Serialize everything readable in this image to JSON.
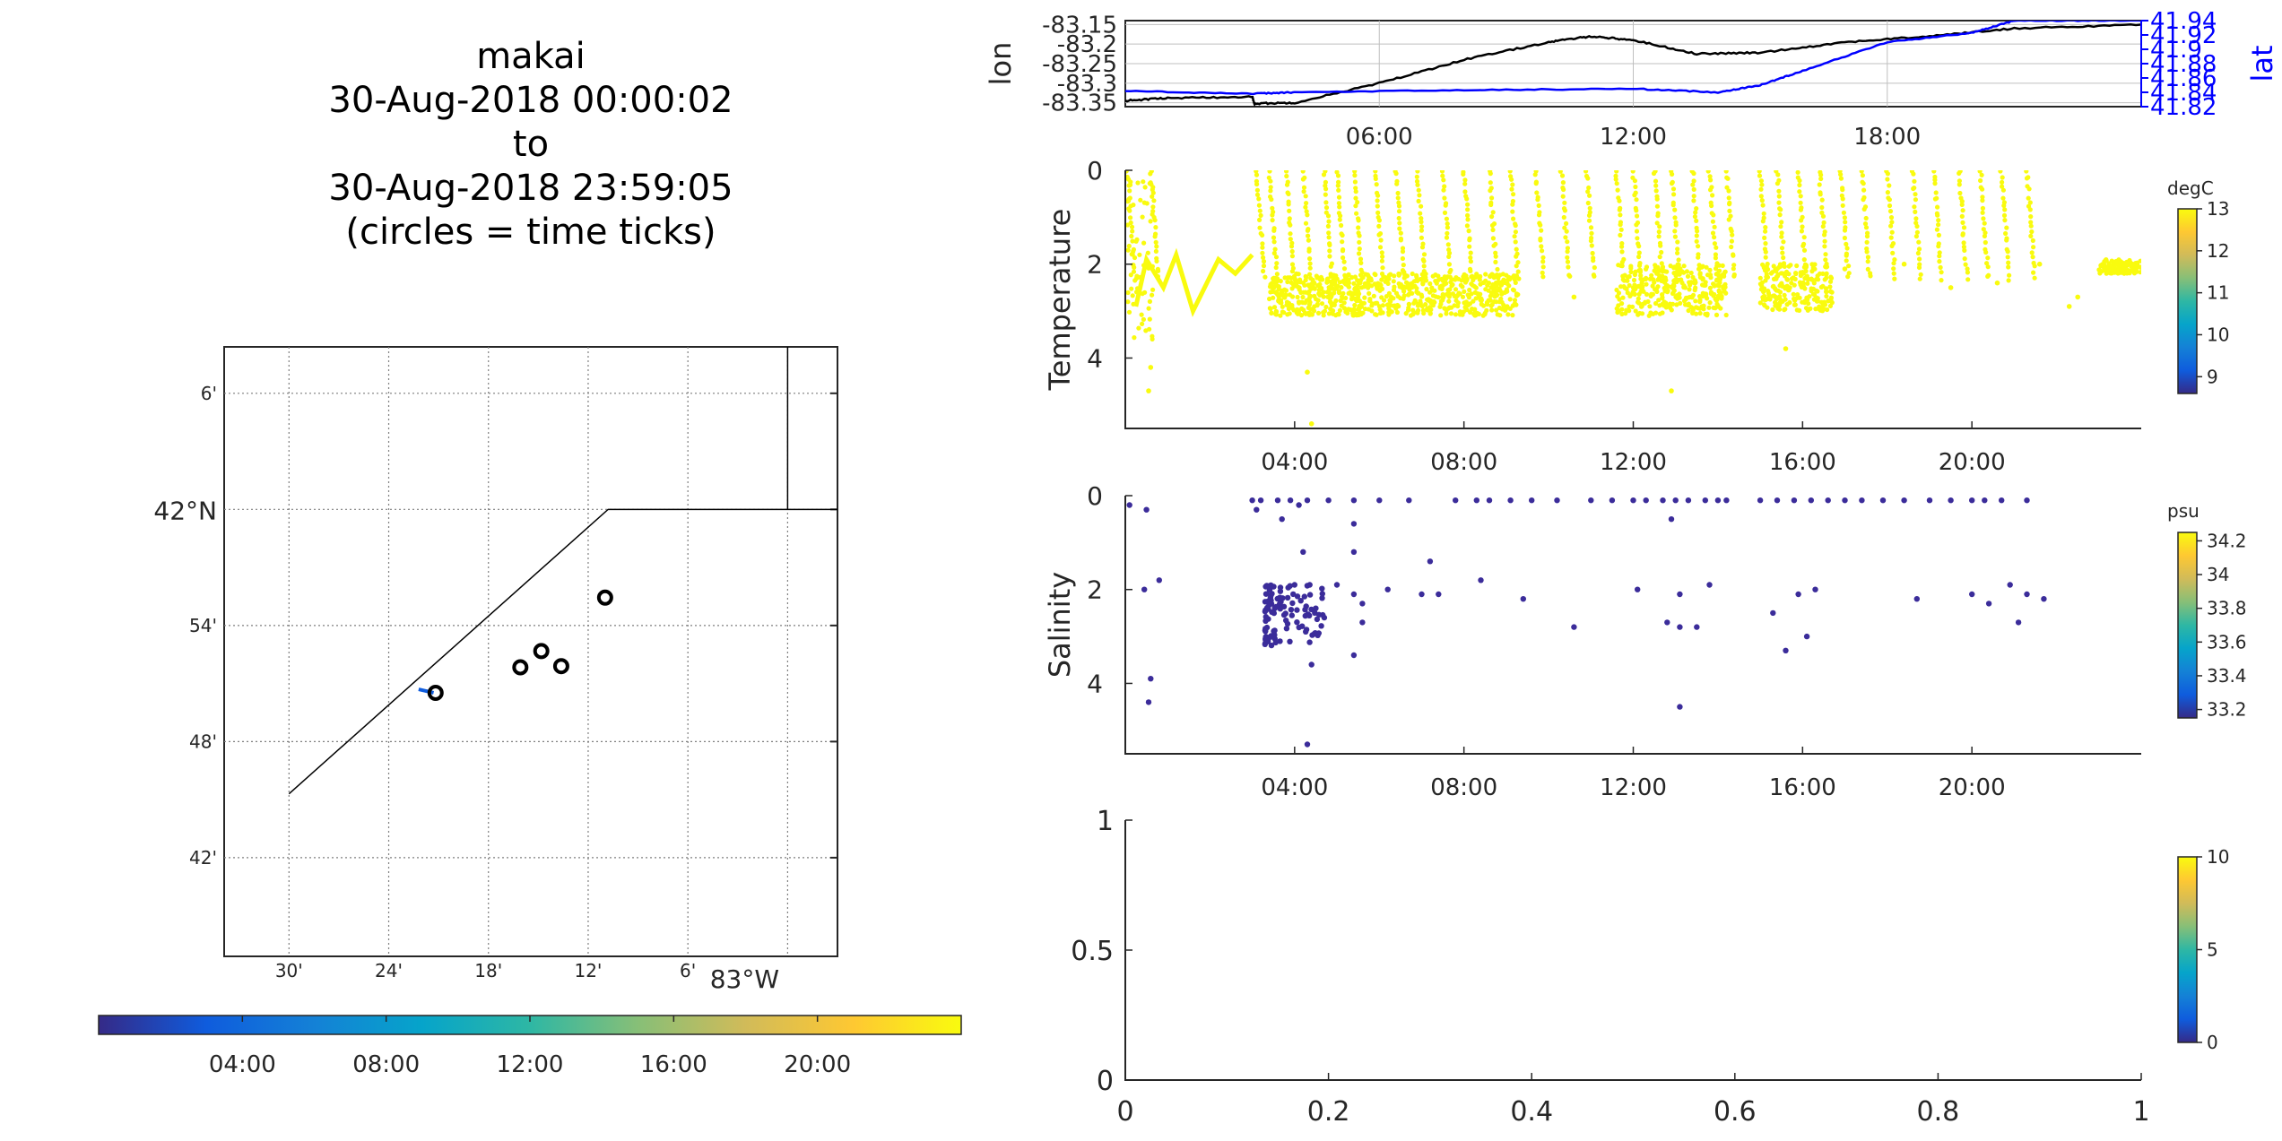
{
  "title": {
    "lines": [
      "makai",
      "30-Aug-2018 00:00:02",
      "to",
      "30-Aug-2018 23:59:05",
      "(circles = time ticks)"
    ]
  },
  "colors": {
    "parula_stops": [
      "#352a87",
      "#0f5cdd",
      "#1481d6",
      "#06a4ca",
      "#2eb7a4",
      "#87bf77",
      "#d1bb59",
      "#fec832",
      "#f9fb0e"
    ],
    "lon_line": "#000000",
    "lat_line": "#0000ff",
    "temperature_dots": "#f9fb0e",
    "salinity_dots": "#3b2c9a",
    "grid": "#bfbfbf"
  },
  "chart_data": [
    {
      "id": "map",
      "type": "scatter",
      "title": "",
      "lat_tick_labels": [
        "6'",
        "42°N",
        "54'",
        "48'",
        "42'"
      ],
      "lon_tick_labels": [
        "30'",
        "24'",
        "18'",
        "12'",
        "6'",
        "83°W"
      ],
      "lat_ticks_deg": [
        42.1,
        42.0,
        41.9,
        41.8,
        41.7
      ],
      "lon_ticks_deg": [
        -83.5,
        -83.4,
        -83.3,
        -83.2,
        -83.1,
        -83.0
      ],
      "xlim_deg": [
        -83.565,
        -82.95
      ],
      "ylim_deg": [
        41.615,
        42.14
      ],
      "coastline": [
        [
          -83.5,
          41.755
        ],
        [
          -83.18,
          42.0
        ],
        [
          -82.95,
          42.0
        ]
      ],
      "coastline2": [
        [
          -83.0,
          42.0
        ],
        [
          -83.0,
          42.14
        ]
      ],
      "time_tick_circles": [
        {
          "lon": -83.353,
          "lat": 41.842
        },
        {
          "lon": -83.268,
          "lat": 41.864
        },
        {
          "lon": -83.247,
          "lat": 41.878
        },
        {
          "lon": -83.227,
          "lat": 41.865
        },
        {
          "lon": -83.183,
          "lat": 41.924
        }
      ],
      "track": [
        [
          -83.37,
          41.845
        ],
        [
          -83.355,
          41.842
        ]
      ]
    },
    {
      "id": "time-colorbar",
      "type": "heatmap",
      "tick_labels": [
        "04:00",
        "08:00",
        "12:00",
        "16:00",
        "20:00"
      ],
      "tick_hours": [
        4,
        8,
        12,
        16,
        20
      ],
      "range_hours": [
        0,
        24
      ]
    },
    {
      "id": "lonlat",
      "type": "line",
      "xlabel": "",
      "ylabel": "lon",
      "ylabel_right": "lat",
      "x_tick_labels": [
        "06:00",
        "12:00",
        "18:00"
      ],
      "x_ticks_hours": [
        6,
        12,
        18
      ],
      "xlim_hours": [
        0,
        24
      ],
      "ylim": [
        -83.36,
        -83.14
      ],
      "y_tick_labels": [
        "-83.15",
        "-83.2",
        "-83.25",
        "-83.3",
        "-83.35"
      ],
      "y_ticks": [
        -83.15,
        -83.2,
        -83.25,
        -83.3,
        -83.35
      ],
      "ylim_right": [
        41.82,
        41.94
      ],
      "y_right_tick_labels": [
        "41.94",
        "41.92",
        "41.9",
        "41.88",
        "41.86",
        "41.84",
        "41.82"
      ],
      "y_right_ticks": [
        41.94,
        41.92,
        41.9,
        41.88,
        41.86,
        41.84,
        41.82
      ],
      "series": [
        {
          "axis": "left",
          "x": [
            0,
            1,
            3.0,
            3.05,
            4,
            6,
            8,
            10,
            11,
            12,
            13.5,
            15,
            17,
            19,
            21,
            24
          ],
          "y": [
            -83.345,
            -83.338,
            -83.335,
            -83.352,
            -83.35,
            -83.3,
            -83.24,
            -83.195,
            -83.18,
            -83.19,
            -83.225,
            -83.222,
            -83.195,
            -83.18,
            -83.16,
            -83.15
          ]
        },
        {
          "axis": "right",
          "x": [
            0,
            3,
            4,
            8,
            12,
            14,
            15,
            16,
            18,
            20,
            21,
            24
          ],
          "y": [
            41.842,
            41.838,
            41.84,
            41.843,
            41.845,
            41.84,
            41.85,
            41.87,
            41.91,
            41.923,
            41.94,
            41.94
          ]
        }
      ]
    },
    {
      "id": "temperature",
      "type": "scatter",
      "ylabel": "Temperature",
      "x_tick_labels": [
        "04:00",
        "08:00",
        "12:00",
        "16:00",
        "20:00"
      ],
      "x_ticks_hours": [
        4,
        8,
        12,
        16,
        20
      ],
      "xlim_hours": [
        0,
        24
      ],
      "ylim": [
        0,
        5.5
      ],
      "y_reversed": true,
      "y_tick_labels": [
        "0",
        "2",
        "4"
      ],
      "y_ticks": [
        0,
        2,
        4
      ],
      "colorbar": {
        "label": "degC",
        "tick_labels": [
          "13",
          "12",
          "11",
          "10",
          "9"
        ],
        "ticks": [
          13,
          12,
          11,
          10,
          9
        ],
        "range": [
          8.6,
          13.0
        ]
      },
      "profile_hours": [
        0.05,
        0.6,
        3.1,
        3.4,
        3.8,
        4.2,
        4.7,
        5.0,
        5.4,
        5.9,
        6.4,
        6.9,
        7.5,
        8.0,
        8.6,
        9.1,
        9.7,
        10.3,
        10.9,
        11.6,
        12.0,
        12.5,
        12.9,
        13.4,
        13.8,
        14.2,
        15.0,
        15.4,
        15.9,
        16.4,
        16.9,
        17.4,
        18.0,
        18.6,
        19.1,
        19.7,
        20.2,
        20.7,
        21.3
      ],
      "clusters": [
        [
          3.4,
          9.3,
          2.2,
          3.1
        ],
        [
          11.6,
          14.2,
          2.0,
          3.1
        ],
        [
          15.0,
          16.7,
          2.0,
          3.0
        ],
        [
          23.0,
          24.0,
          1.9,
          2.2
        ]
      ],
      "trace": [
        [
          0.25,
          2.9
        ],
        [
          0.5,
          1.9
        ],
        [
          0.9,
          2.5
        ],
        [
          1.2,
          1.8
        ],
        [
          1.6,
          3.0
        ],
        [
          2.2,
          1.9
        ],
        [
          2.6,
          2.2
        ],
        [
          3.0,
          1.8
        ]
      ],
      "scatter_extra": [
        [
          0.55,
          4.7
        ],
        [
          0.6,
          4.2
        ],
        [
          4.4,
          5.4
        ],
        [
          4.3,
          4.3
        ],
        [
          10.6,
          2.7
        ],
        [
          12.9,
          4.7
        ],
        [
          15.6,
          3.8
        ],
        [
          17.0,
          2.1
        ],
        [
          18.4,
          2.0
        ],
        [
          19.5,
          2.5
        ],
        [
          20.6,
          2.4
        ],
        [
          21.6,
          2.0
        ],
        [
          22.3,
          2.9
        ],
        [
          22.5,
          2.7
        ]
      ]
    },
    {
      "id": "salinity",
      "type": "scatter",
      "ylabel": "Salinity",
      "x_tick_labels": [
        "04:00",
        "08:00",
        "12:00",
        "16:00",
        "20:00"
      ],
      "x_ticks_hours": [
        4,
        8,
        12,
        16,
        20
      ],
      "xlim_hours": [
        0,
        24
      ],
      "ylim": [
        0,
        5.5
      ],
      "y_reversed": true,
      "y_tick_labels": [
        "0",
        "2",
        "4"
      ],
      "y_ticks": [
        0,
        2,
        4
      ],
      "colorbar": {
        "label": "psu",
        "tick_labels": [
          "34.2",
          "34",
          "33.8",
          "33.6",
          "33.4",
          "33.2"
        ],
        "ticks": [
          34.2,
          34.0,
          33.8,
          33.6,
          33.4,
          33.2
        ],
        "range": [
          33.15,
          34.25
        ]
      },
      "points": [
        [
          0.1,
          0.2
        ],
        [
          0.5,
          0.3
        ],
        [
          0.45,
          2.0
        ],
        [
          0.8,
          1.8
        ],
        [
          0.6,
          3.9
        ],
        [
          0.55,
          4.4
        ],
        [
          3.0,
          0.1
        ],
        [
          3.1,
          0.3
        ],
        [
          3.2,
          0.1
        ],
        [
          3.6,
          0.1
        ],
        [
          3.7,
          0.5
        ],
        [
          3.9,
          0.1
        ],
        [
          4.1,
          0.2
        ],
        [
          4.3,
          0.1
        ],
        [
          4.8,
          0.1
        ],
        [
          5.4,
          0.1
        ],
        [
          5.4,
          0.6
        ],
        [
          5.4,
          1.2
        ],
        [
          5.4,
          2.1
        ],
        [
          5.4,
          3.4
        ],
        [
          4.4,
          3.6
        ],
        [
          4.3,
          5.3
        ],
        [
          4.2,
          1.2
        ],
        [
          4.0,
          1.9
        ],
        [
          4.5,
          2.4
        ],
        [
          4.7,
          2.6
        ],
        [
          5.0,
          1.9
        ],
        [
          5.6,
          2.3
        ],
        [
          5.6,
          2.7
        ],
        [
          6.0,
          0.1
        ],
        [
          6.2,
          2.0
        ],
        [
          6.7,
          0.1
        ],
        [
          7.0,
          2.1
        ],
        [
          7.2,
          1.4
        ],
        [
          7.4,
          2.1
        ],
        [
          7.8,
          0.1
        ],
        [
          8.3,
          0.1
        ],
        [
          8.4,
          1.8
        ],
        [
          8.6,
          0.1
        ],
        [
          9.1,
          0.1
        ],
        [
          9.6,
          0.1
        ],
        [
          9.4,
          2.2
        ],
        [
          10.2,
          0.1
        ],
        [
          10.6,
          2.8
        ],
        [
          11.0,
          0.1
        ],
        [
          11.5,
          0.1
        ],
        [
          12.0,
          0.1
        ],
        [
          12.1,
          2.0
        ],
        [
          12.3,
          0.1
        ],
        [
          12.7,
          0.1
        ],
        [
          12.9,
          0.5
        ],
        [
          12.8,
          2.7
        ],
        [
          13.0,
          0.1
        ],
        [
          13.1,
          2.1
        ],
        [
          13.1,
          2.8
        ],
        [
          13.1,
          4.5
        ],
        [
          13.3,
          0.1
        ],
        [
          13.5,
          2.8
        ],
        [
          13.7,
          0.1
        ],
        [
          13.8,
          1.9
        ],
        [
          14.0,
          0.1
        ],
        [
          14.2,
          0.1
        ],
        [
          15.0,
          0.1
        ],
        [
          15.3,
          2.5
        ],
        [
          15.4,
          0.1
        ],
        [
          15.6,
          3.3
        ],
        [
          15.8,
          0.1
        ],
        [
          15.9,
          2.1
        ],
        [
          16.1,
          3.0
        ],
        [
          16.2,
          0.1
        ],
        [
          16.3,
          2.0
        ],
        [
          16.6,
          0.1
        ],
        [
          17.0,
          0.1
        ],
        [
          17.4,
          0.1
        ],
        [
          17.9,
          0.1
        ],
        [
          18.4,
          0.1
        ],
        [
          18.7,
          2.2
        ],
        [
          19.0,
          0.1
        ],
        [
          19.5,
          0.1
        ],
        [
          20.0,
          0.1
        ],
        [
          20.0,
          2.1
        ],
        [
          20.3,
          0.1
        ],
        [
          20.4,
          2.3
        ],
        [
          20.7,
          0.1
        ],
        [
          20.9,
          1.9
        ],
        [
          21.1,
          2.7
        ],
        [
          21.3,
          0.1
        ],
        [
          21.3,
          2.1
        ],
        [
          21.7,
          2.2
        ]
      ],
      "cluster": [
        3.3,
        4.7,
        1.9,
        3.2
      ]
    },
    {
      "id": "empty",
      "type": "scatter",
      "x_tick_labels": [
        "0",
        "0.2",
        "0.4",
        "0.6",
        "0.8",
        "1"
      ],
      "x_ticks": [
        0,
        0.2,
        0.4,
        0.6,
        0.8,
        1
      ],
      "xlim": [
        0,
        1
      ],
      "ylim": [
        0,
        1
      ],
      "y_tick_labels": [
        "1",
        "0.5",
        "0"
      ],
      "y_ticks": [
        1,
        0.5,
        0
      ],
      "colorbar": {
        "label": "",
        "tick_labels": [
          "10",
          "5",
          "0"
        ],
        "ticks": [
          10,
          5,
          0
        ],
        "range": [
          0,
          10
        ]
      }
    }
  ]
}
